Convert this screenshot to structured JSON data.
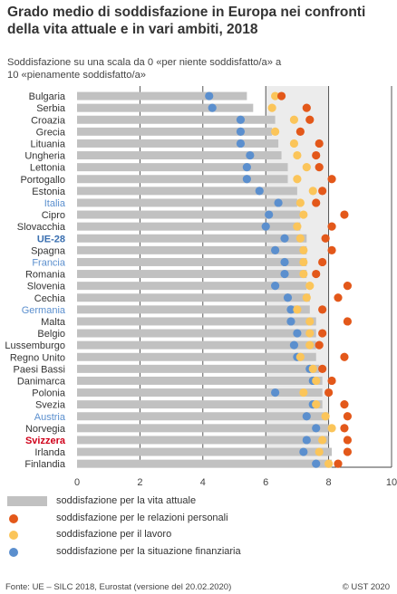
{
  "title": "Grado medio di soddisfazione in Europa nei confronti della vita attuale e in vari ambiti, 2018",
  "subtitle_line1": "Soddisfazione su una scala da 0 «per niente soddisfatto/a» a",
  "subtitle_line2": "10 «pienamente soddisfatto/a»",
  "footer": {
    "source": "Fonte: UE – SILC 2018, Eurostat (versione del 20.02.2020)",
    "copyright": "© UST 2020"
  },
  "colors": {
    "bar": "#c1c1c1",
    "personal": "#e3581a",
    "work": "#fbc55a",
    "finance": "#5b8fce",
    "highlight_blue": "#5b8fce",
    "highlight_bold_blue": "#3a6fb0",
    "highlight_red": "#d0021b",
    "text": "#333333"
  },
  "chart_data": {
    "type": "bar",
    "orientation": "horizontal",
    "xlim": [
      0,
      10
    ],
    "xticks": [
      "0",
      "2",
      "4",
      "6",
      "8",
      "10"
    ],
    "grid": true,
    "legend_position": "bottom",
    "categories": [
      "Bulgaria",
      "Serbia",
      "Croazia",
      "Grecia",
      "Lituania",
      "Ungheria",
      "Lettonia",
      "Portogallo",
      "Estonia",
      "Italia",
      "Cipro",
      "Slovacchia",
      "UE-28",
      "Spagna",
      "Francia",
      "Romania",
      "Slovenia",
      "Cechia",
      "Germania",
      "Malta",
      "Belgio",
      "Lussemburgo",
      "Regno Unito",
      "Paesi Bassi",
      "Danimarca",
      "Polonia",
      "Svezia",
      "Austria",
      "Norvegia",
      "Svizzera",
      "Irlanda",
      "Finlandia"
    ],
    "category_styles": [
      "normal",
      "normal",
      "normal",
      "normal",
      "normal",
      "normal",
      "normal",
      "normal",
      "normal",
      "blue",
      "normal",
      "normal",
      "bold-blue",
      "normal",
      "blue",
      "normal",
      "normal",
      "normal",
      "blue",
      "normal",
      "normal",
      "normal",
      "normal",
      "normal",
      "normal",
      "normal",
      "normal",
      "blue",
      "normal",
      "bold-red",
      "normal",
      "normal"
    ],
    "series": [
      {
        "name": "soddisfazione per la vita attuale",
        "kind": "bar",
        "values": [
          5.4,
          5.6,
          6.3,
          6.2,
          6.4,
          6.5,
          6.7,
          6.7,
          7.0,
          7.0,
          7.1,
          7.1,
          7.3,
          7.3,
          7.3,
          7.3,
          7.3,
          7.4,
          7.4,
          7.6,
          7.6,
          7.6,
          7.6,
          7.7,
          7.8,
          7.8,
          7.8,
          8.0,
          8.0,
          8.0,
          8.1,
          8.1
        ]
      },
      {
        "name": "soddisfazione per le relazioni personali",
        "kind": "dot",
        "values": [
          6.5,
          7.3,
          7.4,
          7.1,
          7.7,
          7.6,
          7.7,
          8.1,
          7.8,
          7.6,
          8.5,
          8.1,
          7.9,
          8.1,
          7.8,
          7.6,
          8.6,
          8.3,
          7.8,
          8.6,
          7.8,
          7.7,
          8.5,
          7.8,
          8.1,
          8.0,
          8.5,
          8.6,
          8.5,
          8.6,
          8.6,
          8.3
        ]
      },
      {
        "name": "soddisfazione per il lavoro",
        "kind": "dot",
        "values": [
          6.3,
          6.2,
          6.9,
          6.3,
          6.9,
          7.0,
          7.3,
          7.0,
          7.5,
          7.1,
          7.2,
          7.0,
          7.1,
          7.2,
          7.2,
          7.2,
          7.4,
          7.3,
          7.0,
          7.4,
          7.4,
          7.4,
          7.1,
          7.5,
          7.6,
          7.2,
          7.6,
          7.9,
          8.1,
          7.8,
          7.7,
          8.0
        ]
      },
      {
        "name": "soddisfazione per la situazione finanziaria",
        "kind": "dot",
        "values": [
          4.2,
          4.3,
          5.2,
          5.2,
          5.2,
          5.5,
          5.4,
          5.4,
          5.8,
          6.4,
          6.1,
          6.0,
          6.6,
          6.3,
          6.6,
          6.6,
          6.3,
          6.7,
          6.8,
          6.8,
          7.0,
          6.9,
          7.0,
          7.4,
          7.5,
          6.3,
          7.5,
          7.3,
          7.6,
          7.3,
          7.2,
          7.6
        ]
      }
    ]
  }
}
